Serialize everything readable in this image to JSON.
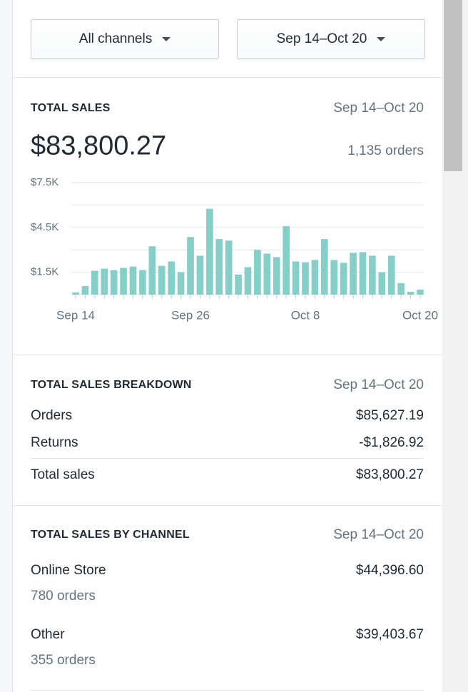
{
  "filters": {
    "channel": "All channels",
    "date_range": "Sep 14–Oct 20"
  },
  "total_sales": {
    "title": "TOTAL SALES",
    "date_range": "Sep 14–Oct 20",
    "amount": "$83,800.27",
    "orders": "1,135 orders"
  },
  "chart_data": {
    "type": "bar",
    "categories": [
      "Sep 14",
      null,
      null,
      null,
      null,
      null,
      null,
      null,
      null,
      null,
      null,
      null,
      "Sep 26",
      null,
      null,
      null,
      null,
      null,
      null,
      null,
      null,
      null,
      null,
      null,
      "Oct 8",
      null,
      null,
      null,
      null,
      null,
      null,
      null,
      null,
      null,
      null,
      null,
      "Oct 20"
    ],
    "values": [
      150,
      580,
      1600,
      1740,
      1640,
      1790,
      1880,
      1640,
      3240,
      1930,
      2220,
      1500,
      3860,
      2610,
      5750,
      3720,
      3620,
      1350,
      1840,
      3000,
      2750,
      2510,
      4590,
      2220,
      2170,
      2320,
      3720,
      2320,
      2130,
      2800,
      2850,
      2610,
      1500,
      2610,
      770,
      190,
      340
    ],
    "color": "#86cfc9",
    "ylim": [
      0,
      7500
    ],
    "yticks": [
      {
        "value": 1500,
        "label": "$1.5K"
      },
      {
        "value": 4500,
        "label": "$4.5K"
      },
      {
        "value": 7500,
        "label": "$7.5K"
      }
    ],
    "grid_lines": [
      0,
      1500,
      3000,
      4500,
      6000,
      7500
    ],
    "grid": true
  },
  "breakdown": {
    "title": "TOTAL SALES BREAKDOWN",
    "date_range": "Sep 14–Oct 20",
    "rows": [
      {
        "label": "Orders",
        "value": "$85,627.19"
      },
      {
        "label": "Returns",
        "value": "-$1,826.92"
      }
    ],
    "total": {
      "label": "Total sales",
      "value": "$83,800.27"
    }
  },
  "by_channel": {
    "title": "TOTAL SALES BY CHANNEL",
    "date_range": "Sep 14–Oct 20",
    "channels": [
      {
        "name": "Online Store",
        "value": "$44,396.60",
        "orders": "780 orders"
      },
      {
        "name": "Other",
        "value": "$39,403.67",
        "orders": "355 orders"
      }
    ]
  }
}
